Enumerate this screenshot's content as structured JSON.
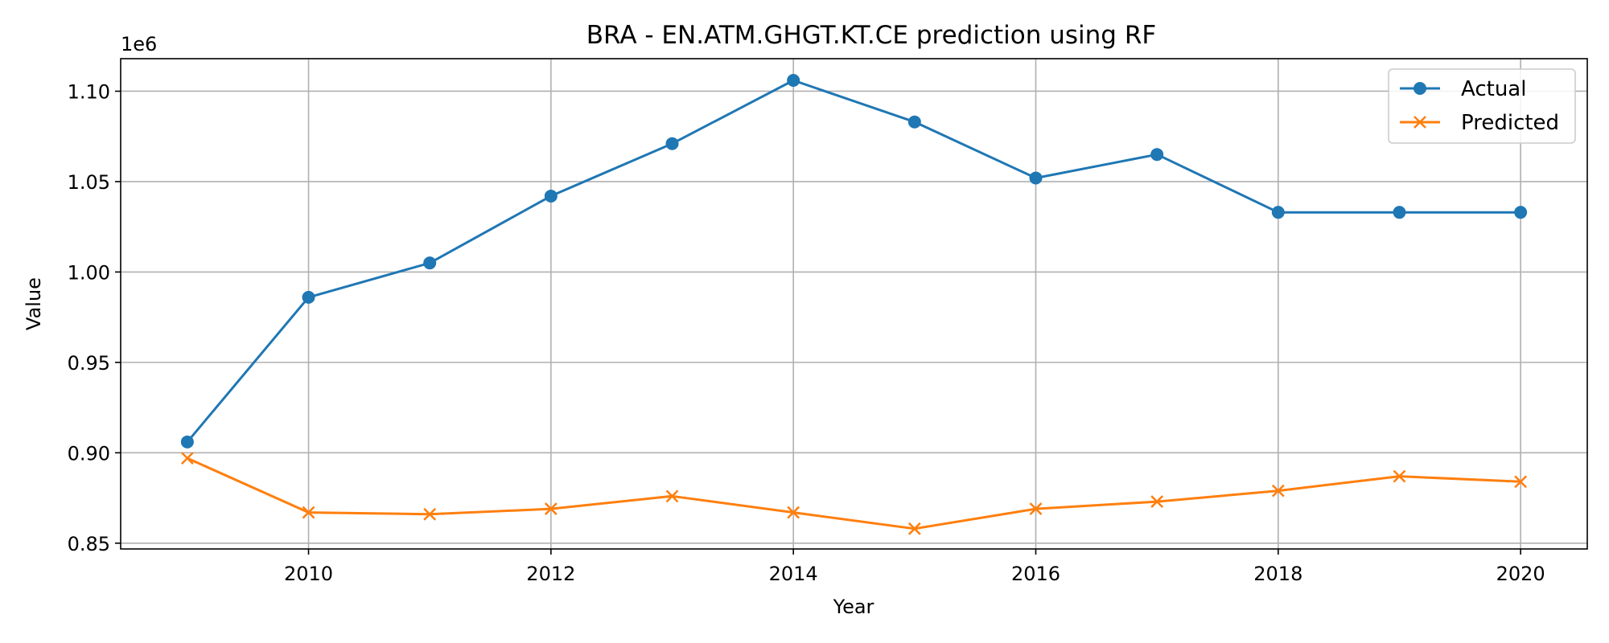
{
  "chart_data": {
    "type": "line",
    "title": "BRA - EN.ATM.GHGT.KT.CE prediction using RF",
    "xlabel": "Year",
    "ylabel": "Value",
    "y_offset_text": "1e6",
    "x": [
      2009,
      2010,
      2011,
      2012,
      2013,
      2014,
      2015,
      2016,
      2017,
      2018,
      2019,
      2020
    ],
    "xlim": [
      2008.45,
      2020.55
    ],
    "ylim": [
      0.8468,
      1.118
    ],
    "y_scale_factor": 1000000,
    "x_ticks": [
      "2010",
      "2012",
      "2014",
      "2016",
      "2018",
      "2020"
    ],
    "y_ticks": [
      "0.85",
      "0.90",
      "0.95",
      "1.00",
      "1.05",
      "1.10"
    ],
    "grid": true,
    "legend_position": "upper-right",
    "series": [
      {
        "name": "Actual",
        "color": "#1f77b4",
        "marker": "circle",
        "values": [
          0.906,
          0.986,
          1.005,
          1.042,
          1.071,
          1.106,
          1.083,
          1.052,
          1.065,
          1.033,
          1.033,
          1.033
        ]
      },
      {
        "name": "Predicted",
        "color": "#ff7f0e",
        "marker": "x",
        "values": [
          0.897,
          0.867,
          0.866,
          0.869,
          0.876,
          0.867,
          0.858,
          0.869,
          0.873,
          0.879,
          0.887,
          0.884
        ]
      }
    ]
  }
}
